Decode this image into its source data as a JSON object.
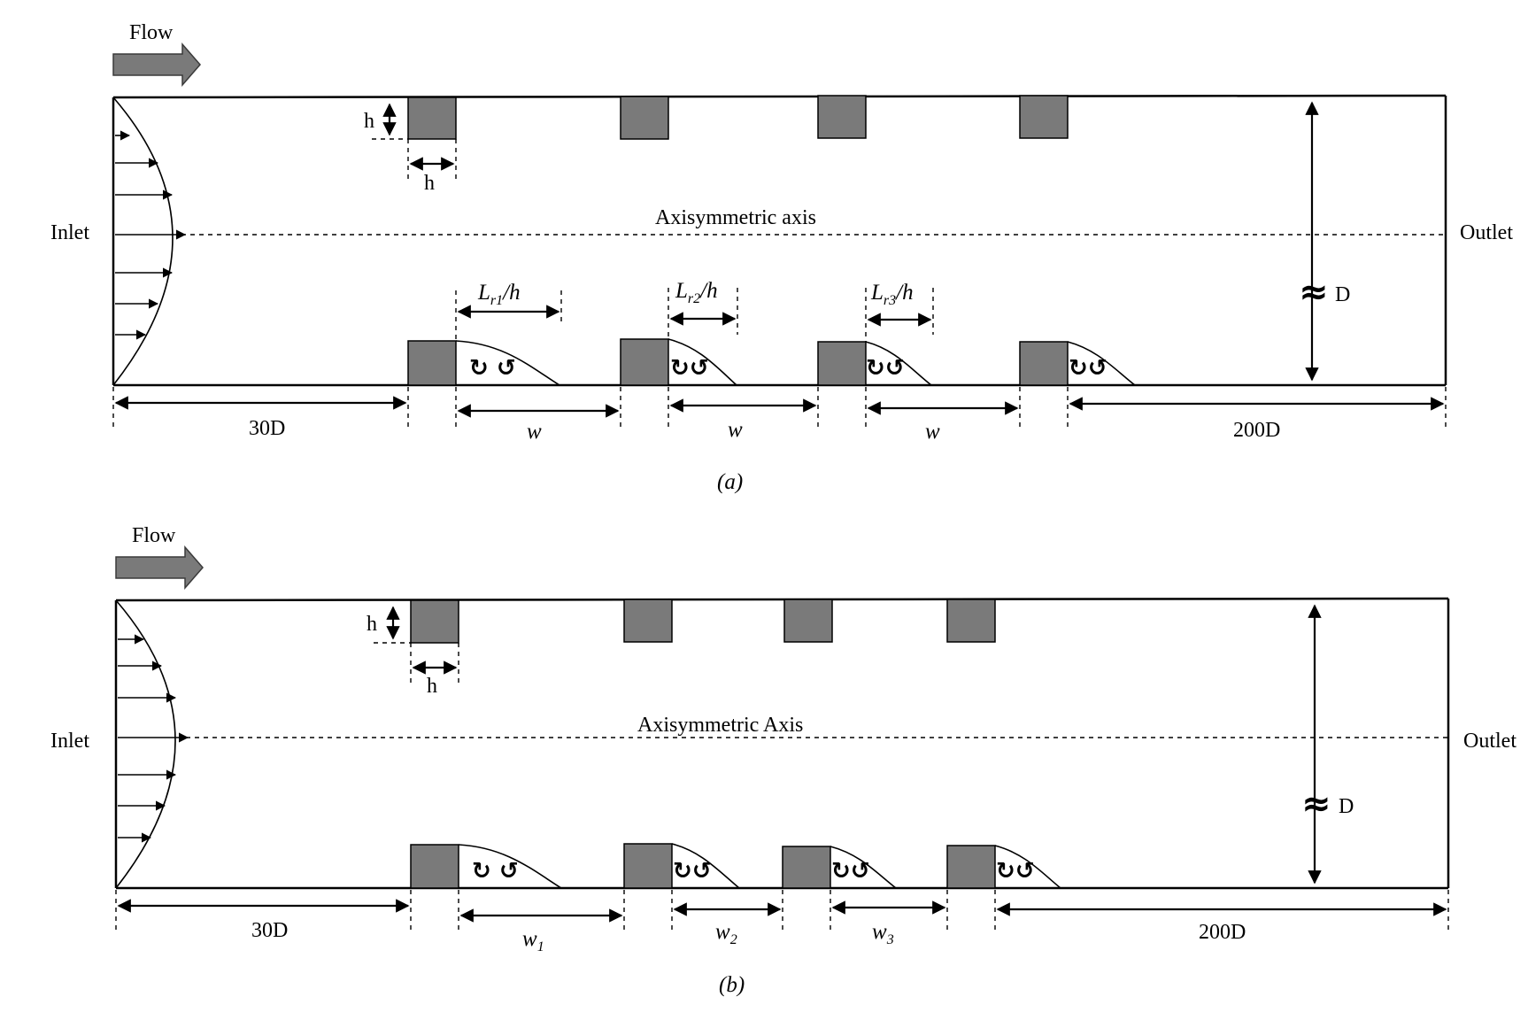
{
  "panel_a": {
    "flow_label": "Flow",
    "inlet_label": "Inlet",
    "outlet_label": "Outlet",
    "axis_label": "Axisymmetric axis",
    "h_label": "h",
    "d_label": "D",
    "approx_symbol": "≈",
    "inlet_length": "30D",
    "outlet_length": "200D",
    "spacing_labels": [
      "w",
      "w",
      "w"
    ],
    "reattach_labels": [
      {
        "main": "L",
        "sub": "r1",
        "tail": "/h"
      },
      {
        "main": "L",
        "sub": "r2",
        "tail": "/h"
      },
      {
        "main": "L",
        "sub": "r3",
        "tail": "/h"
      }
    ],
    "caption": "(a)"
  },
  "panel_b": {
    "flow_label": "Flow",
    "inlet_label": "Inlet",
    "outlet_label": "Outlet",
    "axis_label": "Axisymmetric Axis",
    "h_label": "h",
    "d_label": "D",
    "approx_symbol": "≈",
    "inlet_length": "30D",
    "outlet_length": "200D",
    "spacing_labels": [
      {
        "main": "w",
        "sub": "1"
      },
      {
        "main": "w",
        "sub": "2"
      },
      {
        "main": "w",
        "sub": "3"
      }
    ],
    "caption": "(b)"
  },
  "colors": {
    "rib_fill": "#7a7a7a",
    "arrow_fill": "#7a7a7a",
    "line": "#000000"
  },
  "icons": {
    "flow_arrow": "flow-direction-arrow-icon",
    "recirculation": "recirculation-vortex-icon"
  }
}
